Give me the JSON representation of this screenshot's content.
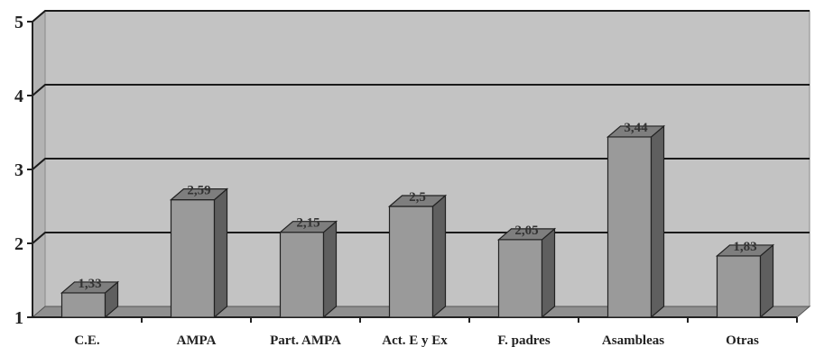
{
  "chart_data": {
    "type": "bar",
    "style": "3d",
    "categories": [
      "C.E.",
      "AMPA",
      "Part. AMPA",
      "Act. E y Ex",
      "F. padres",
      "Asambleas",
      "Otras"
    ],
    "values": [
      1.33,
      2.59,
      2.15,
      2.5,
      2.05,
      3.44,
      1.83
    ],
    "data_labels": [
      "1,33",
      "2,59",
      "2,15",
      "2,5",
      "2,05",
      "3,44",
      "1,83"
    ],
    "ylim": [
      1,
      5
    ],
    "yticks": [
      1,
      2,
      3,
      4,
      5
    ],
    "grid": true,
    "legend": "none",
    "colors": {
      "bar_front": "#9a9a9a",
      "bar_side": "#5f5f5f",
      "bar_top": "#7e7e7e",
      "back_wall": "#c3c3c3",
      "floor": "#8f8f8f",
      "grid_line": "#1a1a1a"
    }
  }
}
